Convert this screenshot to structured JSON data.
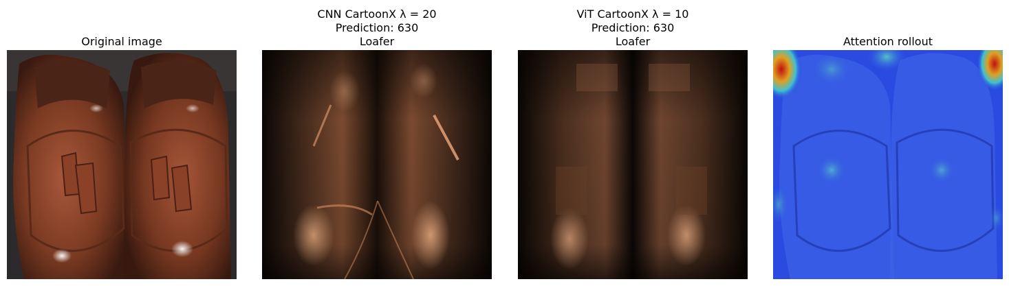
{
  "panels": [
    {
      "title_lines": [
        "Original image"
      ]
    },
    {
      "title_lines": [
        "CNN CartoonX λ = 20",
        "Prediction: 630",
        "Loafer"
      ]
    },
    {
      "title_lines": [
        "ViT CartoonX λ = 10",
        "Prediction: 630",
        "Loafer"
      ]
    },
    {
      "title_lines": [
        "Attention rollout"
      ]
    }
  ]
}
